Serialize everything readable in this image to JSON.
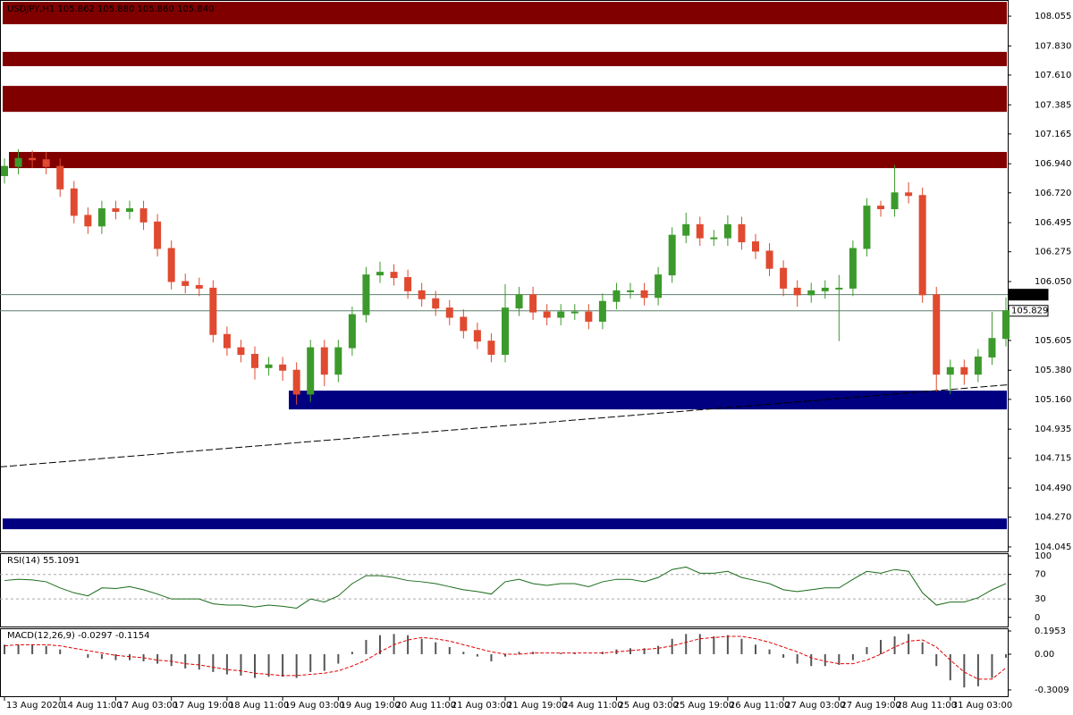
{
  "chart_data": [
    {
      "type": "candlestick",
      "title": "USDJPY,H1 105.862 105.880 105.860 105.840",
      "categories": [
        "13 Aug 2020",
        null,
        null,
        null,
        "14 Aug 11:00",
        null,
        null,
        null,
        "17 Aug 03:00",
        null,
        null,
        null,
        "17 Aug 19:00",
        null,
        null,
        null,
        "18 Aug 11:00",
        null,
        null,
        null,
        "19 Aug 03:00",
        null,
        null,
        null,
        "19 Aug 19:00",
        null,
        null,
        null,
        "20 Aug 11:00",
        null,
        null,
        null,
        "21 Aug 03:00",
        null,
        null,
        null,
        "21 Aug 19:00",
        null,
        null,
        null,
        "24 Aug 11:00",
        null,
        null,
        null,
        "25 Aug 03:00",
        null,
        null,
        null,
        "25 Aug 19:00",
        null,
        null,
        null,
        "26 Aug 11:00",
        null,
        null,
        null,
        "27 Aug 03:00",
        null,
        null,
        null,
        "27 Aug 19:00",
        null,
        null,
        null,
        "28 Aug 11:00",
        null,
        null,
        null,
        "31 Aug 03:00",
        null,
        null,
        null,
        null
      ],
      "open": [
        106.85,
        106.92,
        106.98,
        106.97,
        106.92,
        106.75,
        106.55,
        106.47,
        106.6,
        106.58,
        106.6,
        106.5,
        106.3,
        106.05,
        106.02,
        106.0,
        105.65,
        105.55,
        105.5,
        105.4,
        105.42,
        105.38,
        105.2,
        105.55,
        105.35,
        105.55,
        105.8,
        106.1,
        106.12,
        106.08,
        105.98,
        105.92,
        105.85,
        105.78,
        105.68,
        105.6,
        105.5,
        105.85,
        105.95,
        105.82,
        105.78,
        105.82,
        105.82,
        105.75,
        105.9,
        105.98,
        105.98,
        105.93,
        106.1,
        106.4,
        106.48,
        106.38,
        106.38,
        106.48,
        106.35,
        106.28,
        106.15,
        106.0,
        105.95,
        105.98,
        106.0,
        106.0,
        106.3,
        106.62,
        106.6,
        106.72,
        106.7,
        105.95,
        105.35,
        105.4,
        105.35,
        105.48,
        105.62
      ],
      "high": [
        106.98,
        107.05,
        107.04,
        107.03,
        106.98,
        106.81,
        106.61,
        106.66,
        106.66,
        106.66,
        106.66,
        106.56,
        106.36,
        106.11,
        106.08,
        106.06,
        105.71,
        105.61,
        105.56,
        105.48,
        105.48,
        105.44,
        105.61,
        105.61,
        105.61,
        105.86,
        106.16,
        106.2,
        106.18,
        106.14,
        106.04,
        105.98,
        105.91,
        105.84,
        105.74,
        105.66,
        106.03,
        106.01,
        106.01,
        105.88,
        105.88,
        105.88,
        105.88,
        105.96,
        106.04,
        106.04,
        106.04,
        106.16,
        106.46,
        106.57,
        106.54,
        106.44,
        106.55,
        106.54,
        106.41,
        106.34,
        106.21,
        106.06,
        106.04,
        106.06,
        106.1,
        106.36,
        106.68,
        106.66,
        106.93,
        106.8,
        106.76,
        106.01,
        105.46,
        105.46,
        105.54,
        105.82,
        105.93
      ],
      "low": [
        106.79,
        106.86,
        106.91,
        106.86,
        106.69,
        106.49,
        106.41,
        106.41,
        106.52,
        106.52,
        106.44,
        106.24,
        105.99,
        105.96,
        105.94,
        105.59,
        105.49,
        105.44,
        105.31,
        105.34,
        105.3,
        105.12,
        105.14,
        105.26,
        105.29,
        105.49,
        105.74,
        106.04,
        106.02,
        105.92,
        105.86,
        105.79,
        105.72,
        105.62,
        105.54,
        105.44,
        105.44,
        105.79,
        105.76,
        105.72,
        105.72,
        105.76,
        105.69,
        105.69,
        105.84,
        105.92,
        105.87,
        105.87,
        106.04,
        106.34,
        106.32,
        106.32,
        106.32,
        106.29,
        106.22,
        106.09,
        105.94,
        105.86,
        105.89,
        105.92,
        105.6,
        105.94,
        106.24,
        106.54,
        106.54,
        106.64,
        105.89,
        105.22,
        105.2,
        105.27,
        105.29,
        105.42,
        105.56
      ],
      "close": [
        106.92,
        106.98,
        106.97,
        106.92,
        106.75,
        106.55,
        106.47,
        106.6,
        106.58,
        106.6,
        106.5,
        106.3,
        106.05,
        106.02,
        106.0,
        105.65,
        105.55,
        105.5,
        105.4,
        105.42,
        105.38,
        105.2,
        105.55,
        105.35,
        105.55,
        105.8,
        106.1,
        106.12,
        106.08,
        105.98,
        105.92,
        105.85,
        105.78,
        105.68,
        105.6,
        105.5,
        105.85,
        105.95,
        105.82,
        105.78,
        105.82,
        105.82,
        105.75,
        105.9,
        105.98,
        105.98,
        105.93,
        106.1,
        106.4,
        106.48,
        106.38,
        106.38,
        106.48,
        106.35,
        106.28,
        106.15,
        106.0,
        105.95,
        105.98,
        106.0,
        106.0,
        106.3,
        106.62,
        106.6,
        106.72,
        106.7,
        105.95,
        105.35,
        105.4,
        105.35,
        105.48,
        105.62,
        105.83
      ],
      "up_color": "#3c9a2c",
      "down_color": "#e04a30",
      "ylim": [
        104.011,
        108.177
      ],
      "yticks": [
        108.055,
        {
          "value": 107.83,
          "label": "107.830"
        },
        {
          "value": 107.61,
          "label": "107.610"
        },
        107.385,
        107.165,
        {
          "value": 106.94,
          "label": "106.940"
        },
        {
          "value": 106.72,
          "label": "106.720"
        },
        106.495,
        106.275,
        {
          "value": 106.05,
          "label": "106.050"
        },
        105.605,
        {
          "value": 105.38,
          "label": "105.380"
        },
        {
          "value": 105.16,
          "label": "105.160"
        },
        104.935,
        104.715,
        {
          "value": 104.49,
          "label": "104.490"
        },
        {
          "value": 104.27,
          "label": "104.270"
        },
        104.045
      ],
      "zones": [
        {
          "from": 108.163,
          "to": 107.994,
          "color": "#800000"
        },
        {
          "from": 107.785,
          "to": 107.677,
          "color": "#800000"
        },
        {
          "from": 107.528,
          "to": 107.332,
          "color": "#800000"
        },
        {
          "from": 107.029,
          "to": 106.907,
          "color": "#800000"
        },
        {
          "from": 105.226,
          "to": 105.084,
          "color": "#000080"
        },
        {
          "from": 104.26,
          "to": 104.179,
          "color": "#000080"
        }
      ],
      "trendline": [
        104.65,
        105.27
      ],
      "price_lines": [
        105.951,
        105.829
      ]
    },
    {
      "type": "line",
      "title": "RSI(14) 55.1091",
      "values": [
        60,
        62,
        61,
        58,
        48,
        40,
        35,
        48,
        47,
        50,
        45,
        38,
        30,
        30,
        30,
        22,
        20,
        20,
        17,
        20,
        18,
        15,
        30,
        25,
        35,
        55,
        68,
        68,
        65,
        60,
        58,
        55,
        50,
        45,
        42,
        38,
        58,
        62,
        55,
        52,
        55,
        55,
        50,
        58,
        62,
        62,
        58,
        65,
        78,
        82,
        72,
        72,
        75,
        65,
        60,
        55,
        45,
        42,
        45,
        48,
        48,
        62,
        75,
        72,
        78,
        75,
        40,
        20,
        25,
        25,
        32,
        45,
        55.1091
      ],
      "color": "#1a6b1a",
      "ylim": [
        -14.9,
        104.5
      ],
      "yticks": [
        100,
        70,
        30,
        0
      ],
      "levels": [
        70,
        30
      ]
    },
    {
      "type": "macd",
      "title": "MACD(12,26,9) -0.0297 -0.1154",
      "values": [
        0.08,
        0.08,
        0.08,
        0.07,
        0.04,
        0.0,
        -0.03,
        -0.04,
        -0.05,
        -0.05,
        -0.06,
        -0.08,
        -0.1,
        -0.12,
        -0.13,
        -0.15,
        -0.17,
        -0.18,
        -0.2,
        -0.19,
        -0.19,
        -0.2,
        -0.15,
        -0.14,
        -0.08,
        0.02,
        0.12,
        0.16,
        0.17,
        0.16,
        0.13,
        0.1,
        0.06,
        0.02,
        -0.02,
        -0.06,
        -0.02,
        0.02,
        0.02,
        0.0,
        0.01,
        0.01,
        0.0,
        0.02,
        0.04,
        0.05,
        0.05,
        0.07,
        0.13,
        0.17,
        0.17,
        0.15,
        0.16,
        0.13,
        0.08,
        0.04,
        -0.03,
        -0.08,
        -0.1,
        -0.1,
        -0.09,
        -0.05,
        0.06,
        0.12,
        0.15,
        0.17,
        0.1,
        -0.1,
        -0.22,
        -0.28,
        -0.27,
        -0.2,
        -0.0297
      ],
      "signal": [
        0.07,
        0.08,
        0.08,
        0.08,
        0.07,
        0.05,
        0.03,
        0.01,
        -0.01,
        -0.02,
        -0.03,
        -0.05,
        -0.06,
        -0.08,
        -0.09,
        -0.11,
        -0.13,
        -0.14,
        -0.16,
        -0.17,
        -0.18,
        -0.18,
        -0.17,
        -0.16,
        -0.14,
        -0.1,
        -0.05,
        0.02,
        0.08,
        0.12,
        0.14,
        0.13,
        0.11,
        0.08,
        0.05,
        0.02,
        0.0,
        0.0,
        0.01,
        0.01,
        0.01,
        0.01,
        0.01,
        0.01,
        0.02,
        0.03,
        0.04,
        0.05,
        0.07,
        0.1,
        0.13,
        0.14,
        0.15,
        0.15,
        0.13,
        0.1,
        0.06,
        0.02,
        -0.03,
        -0.06,
        -0.08,
        -0.08,
        -0.05,
        0.0,
        0.06,
        0.11,
        0.12,
        0.06,
        -0.05,
        -0.15,
        -0.21,
        -0.21,
        -0.1154
      ],
      "color": "#555555",
      "signal_color": "#e00000",
      "ylim": [
        -0.354,
        0.218
      ],
      "yticks": [
        0.1953,
        {
          "value": 0,
          "label": "0.00"
        },
        -0.3009
      ]
    }
  ]
}
